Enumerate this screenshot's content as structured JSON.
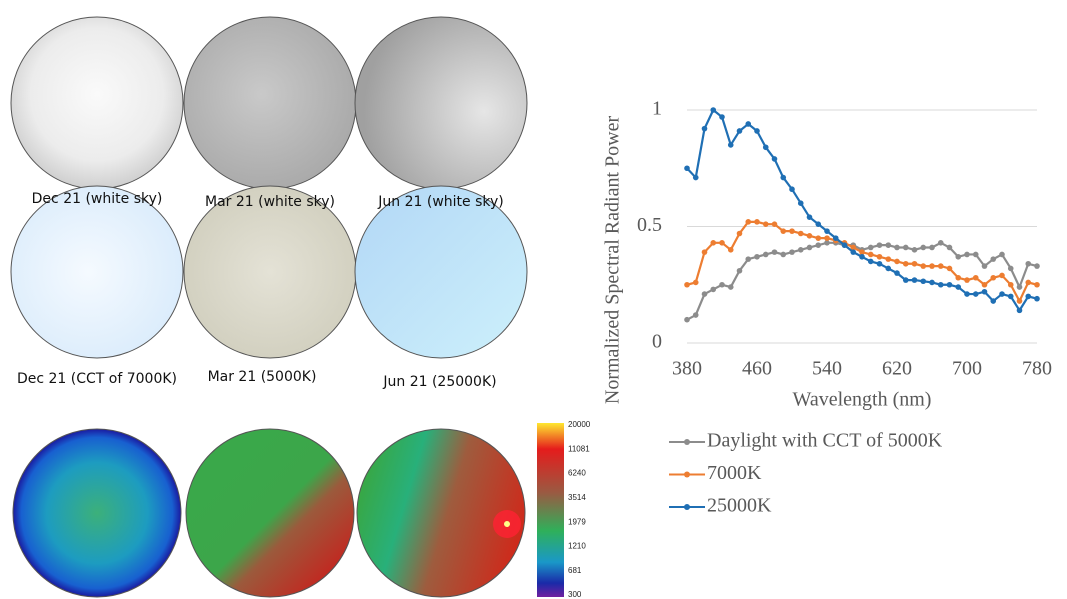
{
  "panels": [
    {
      "label": "Dec 21 (white sky)"
    },
    {
      "label": "Mar 21 (white sky)"
    },
    {
      "label": "Jun 21 (white sky)"
    },
    {
      "label": "Dec 21 (CCT of 7000K)"
    },
    {
      "label": "Mar 21 (5000K)"
    },
    {
      "label": "Jun 21 (25000K)"
    }
  ],
  "colorbar": {
    "ticks": [
      20000,
      11081,
      6240,
      3514,
      1979,
      1210,
      681,
      300
    ]
  },
  "chart_data": {
    "type": "line",
    "x_label": "Wavelength (nm)",
    "y_label": "Normalized Spectral Radiant Power",
    "x": [
      380,
      390,
      400,
      410,
      420,
      430,
      440,
      450,
      460,
      470,
      480,
      490,
      500,
      510,
      520,
      530,
      540,
      550,
      560,
      570,
      580,
      590,
      600,
      610,
      620,
      630,
      640,
      650,
      660,
      670,
      680,
      690,
      700,
      710,
      720,
      730,
      740,
      750,
      760,
      770,
      780
    ],
    "xlim": [
      380,
      780
    ],
    "xticks": [
      380,
      460,
      540,
      620,
      700,
      780
    ],
    "ylim": [
      0,
      1
    ],
    "yticks": [
      0,
      0.5,
      1
    ],
    "grid": true,
    "series": [
      {
        "name": "Daylight with CCT of 5000K",
        "color": "#8c8c8c",
        "values": [
          0.1,
          0.12,
          0.21,
          0.23,
          0.25,
          0.24,
          0.31,
          0.36,
          0.37,
          0.38,
          0.39,
          0.38,
          0.39,
          0.4,
          0.41,
          0.42,
          0.43,
          0.43,
          0.42,
          0.42,
          0.4,
          0.41,
          0.42,
          0.42,
          0.41,
          0.41,
          0.4,
          0.41,
          0.41,
          0.43,
          0.41,
          0.37,
          0.38,
          0.38,
          0.33,
          0.36,
          0.38,
          0.32,
          0.24,
          0.34,
          0.33
        ]
      },
      {
        "name": "7000K",
        "color": "#ed7d31",
        "values": [
          0.25,
          0.26,
          0.39,
          0.43,
          0.43,
          0.4,
          0.47,
          0.52,
          0.52,
          0.51,
          0.51,
          0.48,
          0.48,
          0.47,
          0.46,
          0.45,
          0.45,
          0.44,
          0.43,
          0.41,
          0.39,
          0.38,
          0.37,
          0.36,
          0.35,
          0.34,
          0.34,
          0.33,
          0.33,
          0.33,
          0.32,
          0.28,
          0.27,
          0.28,
          0.25,
          0.28,
          0.29,
          0.25,
          0.18,
          0.26,
          0.25
        ]
      },
      {
        "name": "25000K",
        "color": "#1f6fb4",
        "values": [
          0.75,
          0.71,
          0.92,
          1.0,
          0.97,
          0.85,
          0.91,
          0.94,
          0.91,
          0.84,
          0.79,
          0.71,
          0.66,
          0.6,
          0.54,
          0.51,
          0.48,
          0.45,
          0.42,
          0.39,
          0.37,
          0.35,
          0.34,
          0.32,
          0.3,
          0.27,
          0.27,
          0.265,
          0.26,
          0.25,
          0.25,
          0.24,
          0.21,
          0.21,
          0.22,
          0.18,
          0.21,
          0.2,
          0.14,
          0.2,
          0.19
        ]
      }
    ]
  }
}
